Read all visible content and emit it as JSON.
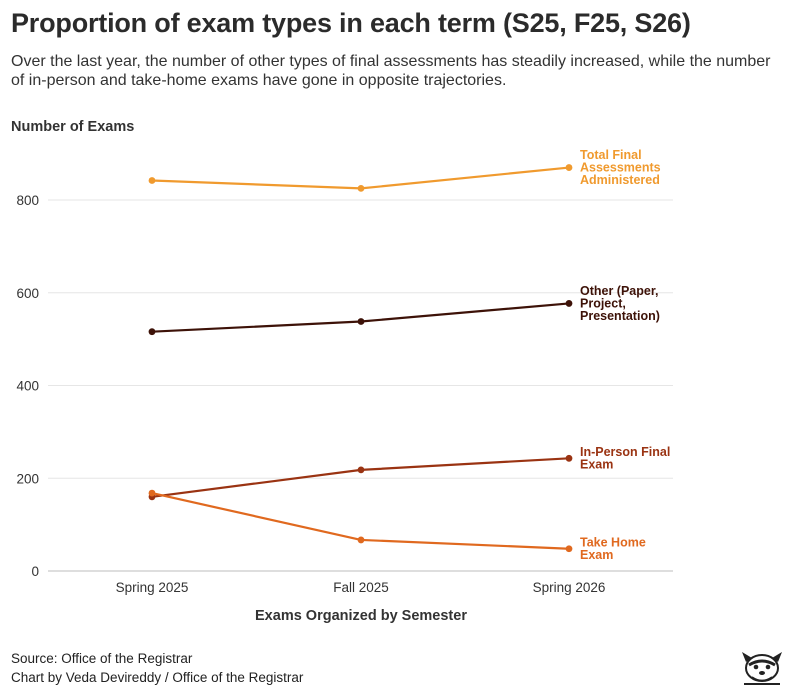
{
  "header": {
    "title": "Proportion of exam types in each term (S25, F25, S26)",
    "subtitle": "Over the last year, the number of other types of final assessments has steadily increased, while the number of in-person and take-home exams have gone in opposite trajectories."
  },
  "footer": {
    "source": "Source: Office of the Registrar",
    "credit": "Chart by Veda Devireddy / Office of the Registrar",
    "logo_icon": "mascot-logo-icon"
  },
  "chart_data": {
    "type": "line",
    "title": "Proportion of exam types in each term (S25, F25, S26)",
    "xlabel": "Exams Organized by Semester",
    "ylabel": "Number of Exams",
    "categories": [
      "Spring 2025",
      "Fall 2025",
      "Spring 2026"
    ],
    "ylim": [
      0,
      900
    ],
    "yticks": [
      0,
      200,
      400,
      600,
      800
    ],
    "grid": true,
    "series": [
      {
        "name": "Total Final Assessments Administered",
        "label_lines": [
          "Total Final",
          "Assessments",
          "Administered"
        ],
        "values": [
          842,
          825,
          870
        ],
        "color": "#f09a2e"
      },
      {
        "name": "Other (Paper, Project, Presentation)",
        "label_lines": [
          "Other (Paper,",
          "Project,",
          "Presentation)"
        ],
        "values": [
          516,
          538,
          577
        ],
        "color": "#3d1208"
      },
      {
        "name": "In-Person Final Exam",
        "label_lines": [
          "In-Person Final",
          "Exam"
        ],
        "values": [
          160,
          218,
          243
        ],
        "color": "#9a3312"
      },
      {
        "name": "Take Home Exam",
        "label_lines": [
          "Take Home",
          "Exam"
        ],
        "values": [
          168,
          67,
          48
        ],
        "color": "#e0691f"
      }
    ]
  }
}
